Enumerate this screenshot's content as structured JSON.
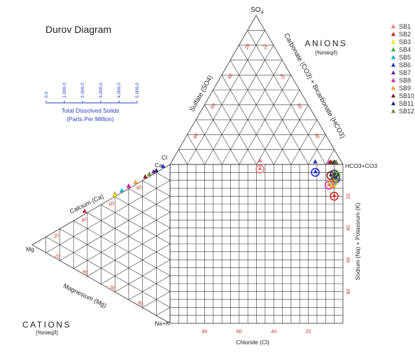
{
  "chart_data": {
    "type": "durov",
    "title": "Durov Diagram",
    "anions": {
      "title": "ANIONS",
      "unit": "(%meq/l)",
      "apex_top": "SO",
      "apex_top_sub": "4",
      "axis_sulfate": "Sulfate (SO4)",
      "axis_bicarbonate": "Carbonate (CO3) + Bicarbonate (HCO3)",
      "corner_right": "HCO3+CO3",
      "corner_left": "Cl"
    },
    "cations": {
      "title": "CATIONS",
      "unit": "(%meq/l)",
      "apex_left": "Mg",
      "corner_top": "Ca",
      "corner_bottom": "Na+K",
      "axis_calcium": "Calcium (Ca)",
      "axis_magnesium": "Magnesium (Mg)"
    },
    "square": {
      "axis_chloride": "Chloride (Cl)",
      "axis_sodium": "Sodium (Na) + Potassium (K)"
    },
    "tick_labels": [
      "20",
      "40",
      "60",
      "80"
    ],
    "tds_scale": {
      "title": "Total Dissolved Solids",
      "subtitle": "(Parts Per Million)",
      "ticks": [
        "0,0",
        "1.000,0",
        "2.000,0",
        "3.000,0",
        "4.000,0",
        "5.000,0"
      ]
    },
    "samples": [
      {
        "name": "SB1",
        "color": "#f08080",
        "square_cl": 48,
        "square_na": 3,
        "anion_so4": 9,
        "cation_ca": 60,
        "cation_mg": 6
      },
      {
        "name": "SB2",
        "color": "#e02020",
        "square_cl": 5,
        "square_na": 20,
        "anion_so4": 4,
        "cation_ca": 38,
        "cation_mg": 9
      },
      {
        "name": "SB3",
        "color": "#ffff00",
        "square_cl": 6,
        "square_na": 11,
        "anion_so4": 2,
        "cation_ca": 60,
        "cation_mg": 1
      },
      {
        "name": "SB4",
        "color": "#2eb82e",
        "square_cl": 4,
        "square_na": 8,
        "anion_so4": 3,
        "cation_ca": 70,
        "cation_mg": 5
      },
      {
        "name": "SB5",
        "color": "#00bcd4",
        "square_cl": 5,
        "square_na": 10,
        "anion_so4": 2,
        "cation_ca": 65,
        "cation_mg": 3
      },
      {
        "name": "SB6",
        "color": "#1a2fd8",
        "square_cl": 16,
        "square_na": 5,
        "anion_so4": 5,
        "cation_ca": 95,
        "cation_mg": 4
      },
      {
        "name": "SB7",
        "color": "#7b1fa2",
        "square_cl": 4,
        "square_na": 9,
        "anion_so4": 2,
        "cation_ca": 88,
        "cation_mg": 5
      },
      {
        "name": "SB8",
        "color": "#e91ea8",
        "square_cl": 8,
        "square_na": 13,
        "anion_so4": 3,
        "cation_ca": 70,
        "cation_mg": 6
      },
      {
        "name": "SB9",
        "color": "#f5a623",
        "square_cl": 6,
        "square_na": 12,
        "anion_so4": 2,
        "cation_ca": 75,
        "cation_mg": 5
      },
      {
        "name": "SB10",
        "color": "#8b1a1a",
        "square_cl": 7,
        "square_na": 7,
        "anion_so4": 4,
        "cation_ca": 82,
        "cation_mg": 4
      },
      {
        "name": "SB11",
        "color": "#1a237e",
        "square_cl": 5,
        "square_na": 6,
        "anion_so4": 3,
        "cation_ca": 90,
        "cation_mg": 3
      },
      {
        "name": "SB12",
        "color": "#6b8e23",
        "square_cl": 4,
        "square_na": 7,
        "anion_so4": 3,
        "cation_ca": 85,
        "cation_mg": 5
      }
    ]
  }
}
